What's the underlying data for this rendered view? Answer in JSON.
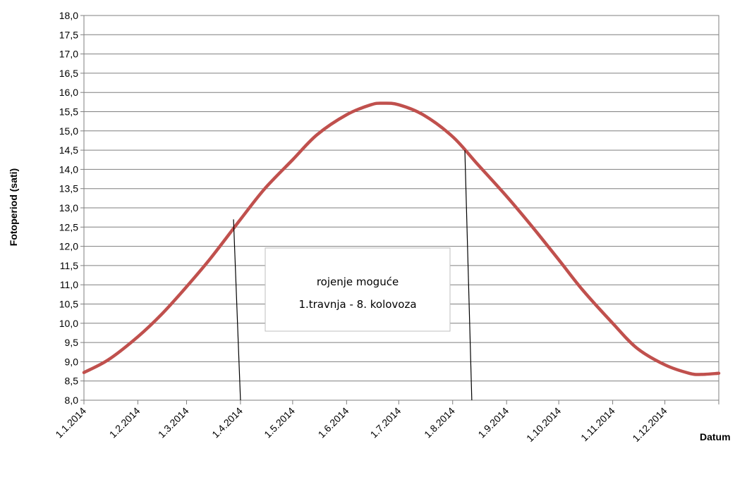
{
  "chart_data": {
    "type": "line",
    "title": "",
    "xlabel": "Datum",
    "ylabel": "Fotoperiod (sati)",
    "ylim": [
      8.0,
      18.0
    ],
    "y_ticks": [
      "8,0",
      "8,5",
      "9,0",
      "9,5",
      "10,0",
      "10,5",
      "11,0",
      "11,5",
      "12,0",
      "12,5",
      "13,0",
      "13,5",
      "14,0",
      "14,5",
      "15,0",
      "15,5",
      "16,0",
      "16,5",
      "17,0",
      "17,5",
      "18,0"
    ],
    "x_ticks": [
      {
        "date": "2014-01-01",
        "label": "1.1.2014"
      },
      {
        "date": "2014-02-01",
        "label": "1.2.2014"
      },
      {
        "date": "2014-03-01",
        "label": "1.3.2014"
      },
      {
        "date": "2014-04-01",
        "label": "1.4.2014"
      },
      {
        "date": "2014-05-01",
        "label": "1.5.2014"
      },
      {
        "date": "2014-06-01",
        "label": "1.6.2014"
      },
      {
        "date": "2014-07-01",
        "label": "1.7.2014"
      },
      {
        "date": "2014-08-01",
        "label": "1.8.2014"
      },
      {
        "date": "2014-09-01",
        "label": "1.9.2014"
      },
      {
        "date": "2014-10-01",
        "label": "1.10.2014"
      },
      {
        "date": "2014-11-01",
        "label": "1.11.2014"
      },
      {
        "date": "2014-12-01",
        "label": "1.12.2014"
      },
      {
        "date": "2015-01-01",
        "label": ""
      }
    ],
    "xlim": [
      "2014-01-01",
      "2015-01-01"
    ],
    "grid": "horizontal",
    "legend": "none",
    "series": [
      {
        "color": "#c0504d",
        "points": [
          {
            "x": "2014-01-01",
            "y": 8.72
          },
          {
            "x": "2014-01-15",
            "y": 9.05
          },
          {
            "x": "2014-02-01",
            "y": 9.65
          },
          {
            "x": "2014-02-15",
            "y": 10.25
          },
          {
            "x": "2014-03-01",
            "y": 10.95
          },
          {
            "x": "2014-03-15",
            "y": 11.7
          },
          {
            "x": "2014-04-01",
            "y": 12.7
          },
          {
            "x": "2014-04-15",
            "y": 13.5
          },
          {
            "x": "2014-05-01",
            "y": 14.25
          },
          {
            "x": "2014-05-15",
            "y": 14.9
          },
          {
            "x": "2014-06-01",
            "y": 15.42
          },
          {
            "x": "2014-06-15",
            "y": 15.68
          },
          {
            "x": "2014-06-22",
            "y": 15.72
          },
          {
            "x": "2014-07-01",
            "y": 15.68
          },
          {
            "x": "2014-07-15",
            "y": 15.42
          },
          {
            "x": "2014-08-01",
            "y": 14.85
          },
          {
            "x": "2014-08-15",
            "y": 14.15
          },
          {
            "x": "2014-09-01",
            "y": 13.3
          },
          {
            "x": "2014-09-15",
            "y": 12.55
          },
          {
            "x": "2014-10-01",
            "y": 11.65
          },
          {
            "x": "2014-10-15",
            "y": 10.85
          },
          {
            "x": "2014-11-01",
            "y": 10.0
          },
          {
            "x": "2014-11-15",
            "y": 9.35
          },
          {
            "x": "2014-12-01",
            "y": 8.92
          },
          {
            "x": "2014-12-15",
            "y": 8.7
          },
          {
            "x": "2014-12-22",
            "y": 8.67
          },
          {
            "x": "2015-01-01",
            "y": 8.7
          }
        ]
      }
    ],
    "annotations": {
      "lines": [
        {
          "from": {
            "x": "2014-04-01",
            "y": 8.0
          },
          "to": {
            "x": "2014-03-28",
            "y": 12.7
          }
        },
        {
          "from": {
            "x": "2014-08-12",
            "y": 8.0
          },
          "to": {
            "x": "2014-08-08",
            "y": 14.5
          }
        }
      ],
      "text_box": {
        "line1": "rojenje moguće",
        "line2": "1.travnja - 8. kolovoza"
      }
    },
    "colors": {
      "series": "#c0504d",
      "grid": "#7f7f7f",
      "axis": "#7f7f7f",
      "box_border": "#bfbfbf",
      "annotation": "#000000"
    }
  }
}
